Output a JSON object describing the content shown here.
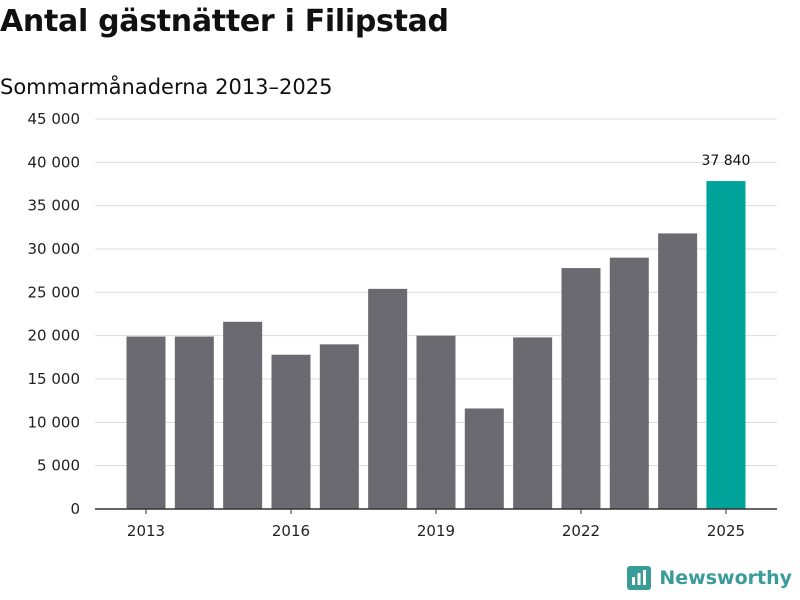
{
  "chart_data": {
    "type": "bar",
    "title": "Antal gästnätter i Filipstad",
    "subtitle": "Sommarmånaderna 2013–2025",
    "xlabel": "",
    "ylabel": "",
    "categories": [
      "2013",
      "2014",
      "2015",
      "2016",
      "2017",
      "2018",
      "2019",
      "2020",
      "2021",
      "2022",
      "2023",
      "2024",
      "2025"
    ],
    "x_tick_labels": [
      "2013",
      "",
      "",
      "2016",
      "",
      "",
      "2019",
      "",
      "",
      "2022",
      "",
      "",
      "2025"
    ],
    "values": [
      19900,
      19900,
      21600,
      17800,
      19000,
      25400,
      20000,
      11600,
      19800,
      27800,
      29000,
      31800,
      37840
    ],
    "ylim": [
      0,
      45000
    ],
    "y_ticks": [
      0,
      5000,
      10000,
      15000,
      20000,
      25000,
      30000,
      35000,
      40000,
      45000
    ],
    "y_tick_labels": [
      "0",
      "5 000",
      "10 000",
      "15 000",
      "20 000",
      "25 000",
      "30 000",
      "35 000",
      "40 000",
      "45 000"
    ],
    "annotations": [
      {
        "category": "2025",
        "text": "37 840"
      }
    ],
    "grid": true,
    "colors": {
      "default_bar": "#6b6a70",
      "highlight_bar": "#00a39a",
      "grid": "#dddddd",
      "axis": "#333333"
    },
    "highlight_index": 12
  },
  "branding": {
    "name": "Newsworthy",
    "icon": "newsworthy-logo-icon",
    "color": "#3a9c98"
  }
}
